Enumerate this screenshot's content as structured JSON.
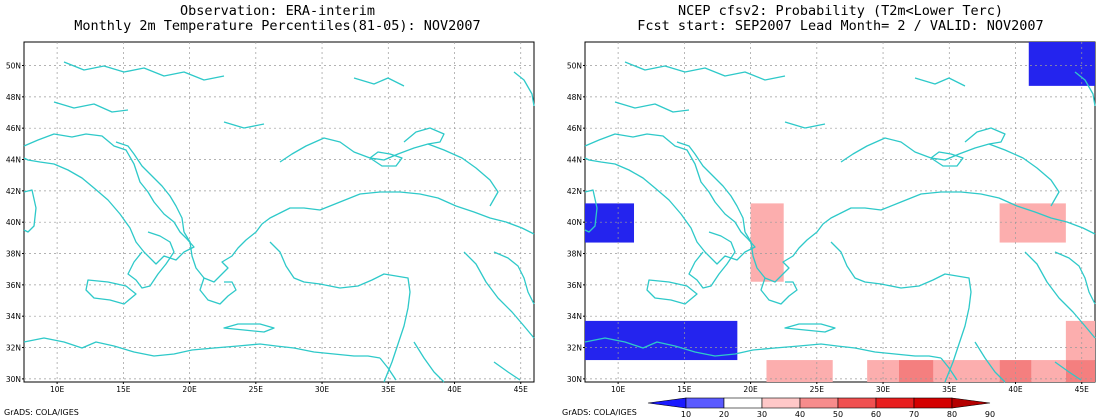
{
  "left_panel": {
    "title_line1": "Observation: ERA-interim",
    "title_line2": "Monthly 2m Temperature Percentiles(81-05): NOV2007"
  },
  "right_panel": {
    "title_line1": "NCEP cfsv2: Probability (T2m<Lower Terc)",
    "title_line2": "Fcst start: SEP2007  Lead Month= 2 / VALID: NOV2007"
  },
  "lat_labels": [
    "50N",
    "48N",
    "46N",
    "44N",
    "42N",
    "40N",
    "38N",
    "36N",
    "34N",
    "32N",
    "30N"
  ],
  "lon_labels": [
    "10E",
    "15E",
    "20E",
    "25E",
    "30E",
    "35E",
    "40E",
    "45E"
  ],
  "credit_left": "GrADS: COLA/IGES",
  "credit_right": "GrADS: COLA/IGES",
  "colorbar": {
    "labels": [
      "10",
      "20",
      "30",
      "40",
      "50",
      "60",
      "70",
      "80",
      "90"
    ],
    "colors": [
      "#1a1aff",
      "#5a5aff",
      "#ffffff",
      "#ffc8c8",
      "#f78c8c",
      "#f05050",
      "#e81e1e",
      "#d40000",
      "#b40000"
    ]
  },
  "colors": {
    "coast": "#2ec9c9",
    "grid": "#9a9a9a",
    "blue": "#2424ee",
    "pink": "#fcaeae",
    "red": "#f47f7f"
  },
  "prob_cells": [
    {
      "lon0": 41,
      "lon1": 46,
      "lat0": 48.7,
      "lat1": 51.5,
      "cat": "below-20"
    },
    {
      "lon0": 7.5,
      "lon1": 11.2,
      "lat0": 38.7,
      "lat1": 41.2,
      "cat": "below-20"
    },
    {
      "lon0": 7.5,
      "lon1": 19,
      "lat0": 31.2,
      "lat1": 33.7,
      "cat": "below-20"
    },
    {
      "lon0": 20,
      "lon1": 22.5,
      "lat0": 36.2,
      "lat1": 41.2,
      "cat": "40-50"
    },
    {
      "lon0": 38.8,
      "lon1": 43.8,
      "lat0": 38.7,
      "lat1": 41.2,
      "cat": "40-50"
    },
    {
      "lon0": 21.2,
      "lon1": 26.2,
      "lat0": 29.8,
      "lat1": 31.2,
      "cat": "40-50"
    },
    {
      "lon0": 28.8,
      "lon1": 31.2,
      "lat0": 29.8,
      "lat1": 31.2,
      "cat": "40-50"
    },
    {
      "lon0": 31.2,
      "lon1": 33.8,
      "lat0": 29.8,
      "lat1": 31.2,
      "cat": "50-60"
    },
    {
      "lon0": 33.8,
      "lon1": 38.8,
      "lat0": 29.8,
      "lat1": 31.2,
      "cat": "40-50"
    },
    {
      "lon0": 38.8,
      "lon1": 41.2,
      "lat0": 29.8,
      "lat1": 31.2,
      "cat": "50-60"
    },
    {
      "lon0": 41.2,
      "lon1": 43.8,
      "lat0": 29.8,
      "lat1": 31.2,
      "cat": "40-50"
    },
    {
      "lon0": 43.8,
      "lon1": 46,
      "lat0": 31.2,
      "lat1": 33.7,
      "cat": "40-50"
    },
    {
      "lon0": 43.8,
      "lon1": 46,
      "lat0": 29.8,
      "lat1": 31.2,
      "cat": "50-60"
    }
  ]
}
